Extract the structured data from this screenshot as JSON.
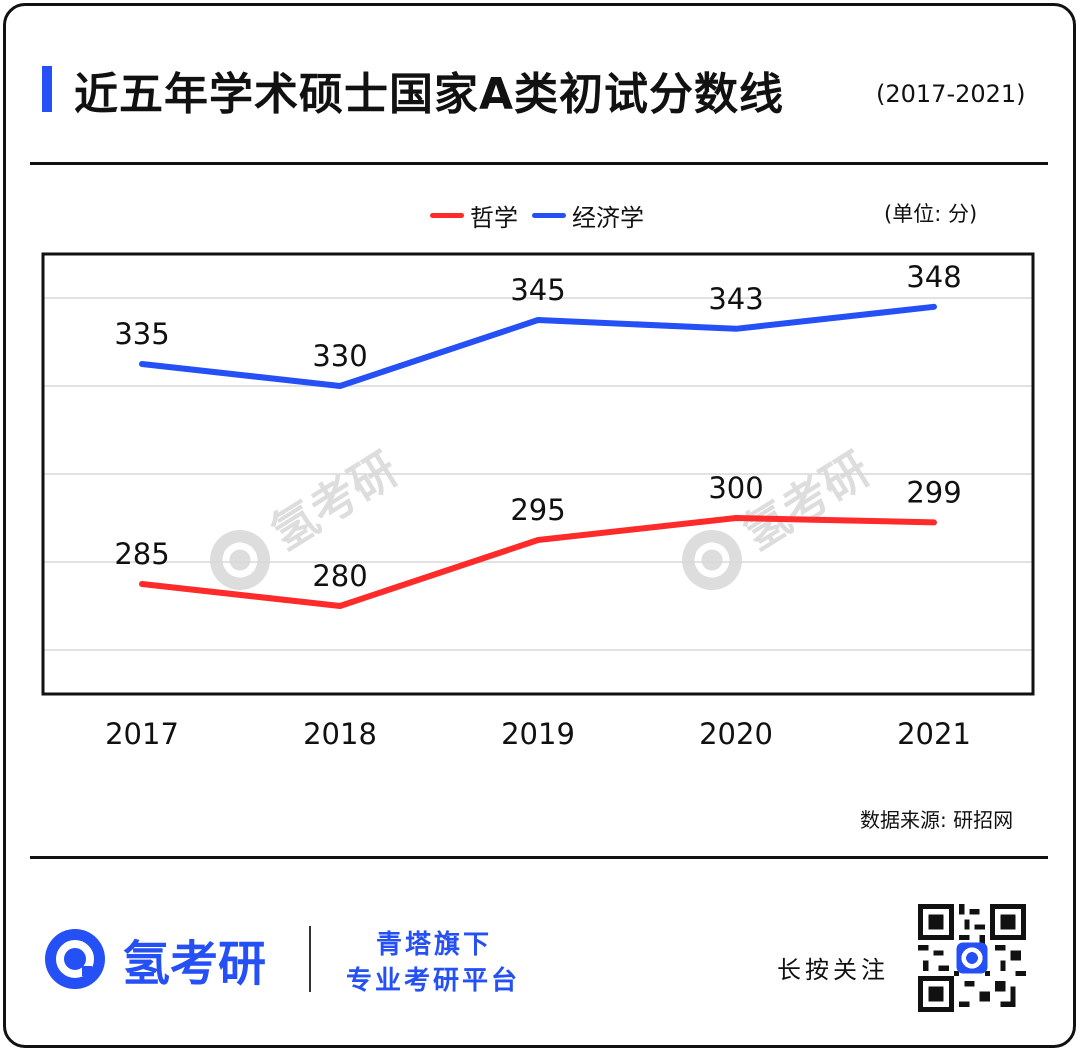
{
  "header": {
    "title": "近五年学术硕士国家A类初试分数线",
    "subtitle": "(2017-2021)",
    "accent_color": "#2450f5"
  },
  "legend": {
    "unit": "(单位: 分)"
  },
  "chart_data": {
    "type": "line",
    "categories": [
      "2017",
      "2018",
      "2019",
      "2020",
      "2021"
    ],
    "series": [
      {
        "name": "哲学",
        "color": "#ff2a2a",
        "values": [
          285,
          280,
          295,
          300,
          299
        ]
      },
      {
        "name": "经济学",
        "color": "#2450f5",
        "values": [
          335,
          330,
          345,
          343,
          348
        ]
      }
    ],
    "title": "近五年学术硕士国家A类初试分数线",
    "xlabel": "",
    "ylabel": "",
    "grid": true,
    "legend_position": "top-center"
  },
  "source": "数据来源: 研招网",
  "footer": {
    "brand": "氢考研",
    "tagline_1": "青塔旗下",
    "tagline_2": "专业考研平台",
    "follow": "长按关注",
    "watermark": "氢考研"
  }
}
